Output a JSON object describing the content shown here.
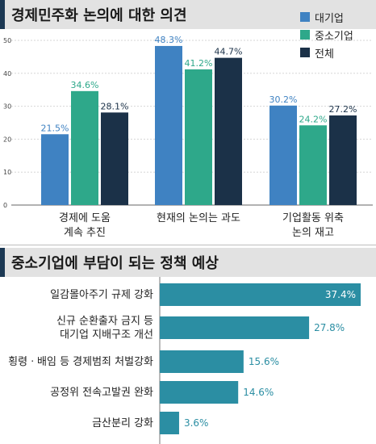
{
  "top_title": "경제민주화 논의에 대한 의견",
  "bottom_title": "중소기업에 부담이 되는 정책 예상",
  "chart_data": [
    {
      "type": "bar",
      "categories": [
        "경제에 도움\n계속 추진",
        "현재의 논의는 과도",
        "기업활동 위축\n논의 재고"
      ],
      "series": [
        {
          "name": "대기업",
          "values": [
            21.5,
            48.3,
            30.2
          ],
          "color": "#3f82c2"
        },
        {
          "name": "중소기업",
          "values": [
            34.6,
            41.2,
            24.2
          ],
          "color": "#2ea88a"
        },
        {
          "name": "전체",
          "values": [
            28.1,
            44.7,
            27.2
          ],
          "color": "#1b3148"
        }
      ],
      "data_labels": [
        [
          "21.5%",
          "48.3%",
          "30.2%"
        ],
        [
          "34.6%",
          "41.2%",
          "24.2%"
        ],
        [
          "28.1%",
          "44.7%",
          "27.2%"
        ]
      ],
      "yticks": [
        0,
        10,
        20,
        30,
        40,
        50
      ],
      "ylim": [
        0,
        50
      ],
      "grid": true,
      "legend": "top-right"
    },
    {
      "type": "bar",
      "orientation": "horizontal",
      "categories": [
        "일감몰아주기 규제 강화",
        "신규 순환출자 금지 등\n대기업 지배구조 개선",
        "횡령ㆍ배임 등 경제범죄 처벌강화",
        "공정위 전속고발권 완화",
        "금산분리 강화"
      ],
      "values": [
        37.4,
        27.8,
        15.6,
        14.6,
        3.6
      ],
      "data_labels": [
        "37.4%",
        "27.8%",
        "15.6%",
        "14.6%",
        "3.6%"
      ],
      "color": "#2b8ea3"
    }
  ]
}
